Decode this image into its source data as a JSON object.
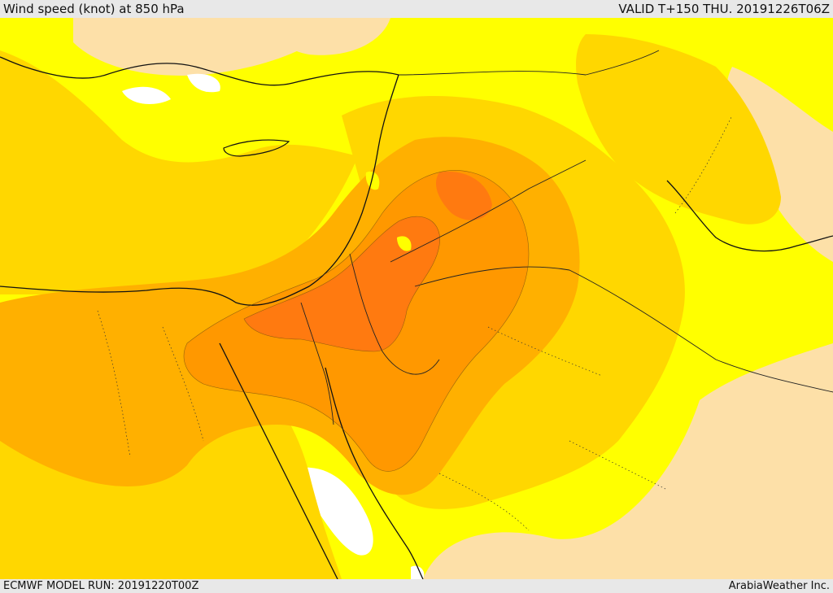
{
  "header": {
    "title": "Wind speed (knot) at 850 hPa",
    "valid_time": "VALID T+150 THU. 20191226T06Z"
  },
  "footer": {
    "model_run": "ECMWF MODEL RUN: 20191220T00Z",
    "credit": "ArabiaWeather Inc."
  },
  "map": {
    "field": "wind speed at 850 hPa",
    "colors": {
      "calm": "#ffffff",
      "light": "#fde0a8",
      "low": "#ffff00",
      "moderate": "#ffd700",
      "fresh": "#ffb000",
      "strong": "#ff9800",
      "very_strong": "#ff7a10",
      "coastline": "#111111",
      "border": "#222222"
    }
  }
}
